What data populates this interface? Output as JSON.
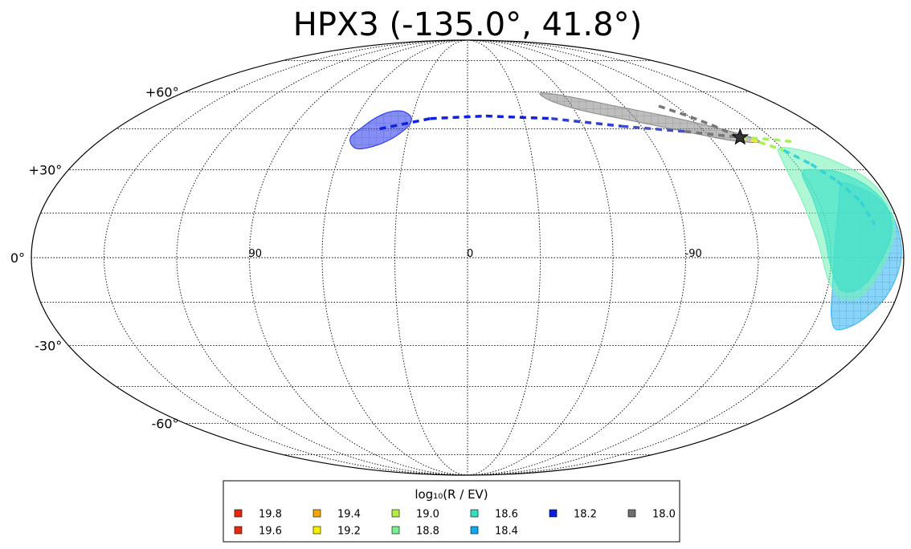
{
  "chart_data": {
    "type": "scatter",
    "projection": "mollweide",
    "title": "HPX3 (-135.0°, 41.8°)",
    "grid": true,
    "lat_ticks": [
      {
        "value": 60,
        "label": "+60°"
      },
      {
        "value": 30,
        "label": "+30°"
      },
      {
        "value": 0,
        "label": "0°"
      },
      {
        "value": -30,
        "label": "-30°"
      },
      {
        "value": -60,
        "label": "-60°"
      }
    ],
    "lon_ticks": [
      {
        "value": 90,
        "label": "90"
      },
      {
        "value": 0,
        "label": "0"
      },
      {
        "value": -90,
        "label": "-90"
      }
    ],
    "source_marker": {
      "lon": -135.0,
      "lat": 41.8,
      "symbol": "star"
    },
    "track": {
      "points": [
        {
          "lon": 45,
          "lat": 45,
          "color": "#1020e0"
        },
        {
          "lon": 20,
          "lat": 49,
          "color": "#1020e0"
        },
        {
          "lon": -10,
          "lat": 50,
          "color": "#1020e0"
        },
        {
          "lon": -45,
          "lat": 49,
          "color": "#1020e0"
        },
        {
          "lon": -80,
          "lat": 46,
          "color": "#3040d0"
        },
        {
          "lon": -110,
          "lat": 44,
          "color": "#4050c8"
        },
        {
          "lon": -135,
          "lat": 41.8,
          "color": "#777777"
        },
        {
          "lon": -142,
          "lat": 40,
          "color": "#f5e63a"
        },
        {
          "lon": -150,
          "lat": 37,
          "color": "#a6f05a"
        },
        {
          "lon": -157,
          "lat": 32,
          "color": "#35d2d8"
        },
        {
          "lon": -163,
          "lat": 26,
          "color": "#35d2d8"
        },
        {
          "lon": -168,
          "lat": 19,
          "color": "#35d2d8"
        },
        {
          "lon": -170,
          "lat": 11,
          "color": "#35d2d8"
        }
      ],
      "gray_branch": [
        {
          "lon": -110,
          "lat": 54
        },
        {
          "lon": -120,
          "lat": 50
        },
        {
          "lon": -128,
          "lat": 46
        },
        {
          "lon": -135,
          "lat": 41.8
        }
      ],
      "green_branch": [
        {
          "lon": -135,
          "lat": 41.8
        },
        {
          "lon": -150,
          "lat": 41
        },
        {
          "lon": -160,
          "lat": 40
        }
      ]
    },
    "regions": [
      {
        "energy": "18.2",
        "color": "#2030f0",
        "opacity": 0.55,
        "hatch": true,
        "outline": [
          [
            31,
            50
          ],
          [
            37,
            52
          ],
          [
            44,
            51.5
          ],
          [
            50,
            49
          ],
          [
            55,
            45
          ],
          [
            58,
            42
          ],
          [
            56,
            39
          ],
          [
            52,
            37.5
          ],
          [
            45,
            38.5
          ],
          [
            38,
            41
          ],
          [
            33,
            44
          ],
          [
            30,
            47
          ]
        ]
      },
      {
        "energy": "18.0",
        "color": "#888888",
        "opacity": 0.55,
        "hatch": true,
        "outline": [
          [
            -46,
            59.5
          ],
          [
            -62,
            58
          ],
          [
            -85,
            54
          ],
          [
            -108,
            50
          ],
          [
            -128,
            45.5
          ],
          [
            -140,
            42
          ],
          [
            -142,
            40
          ],
          [
            -130,
            40.5
          ],
          [
            -110,
            44
          ],
          [
            -88,
            48
          ],
          [
            -65,
            52
          ],
          [
            -50,
            56
          ]
        ]
      },
      {
        "energy": "18.4",
        "color": "#35b8f5",
        "opacity": 0.6,
        "hatch": true,
        "outline": [
          [
            -164,
            25
          ],
          [
            -158,
            18
          ],
          [
            -152,
            5
          ],
          [
            -152,
            -10
          ],
          [
            -156,
            -20
          ],
          [
            -162,
            -24.5
          ],
          [
            -170,
            -21
          ],
          [
            -176,
            -12
          ],
          [
            -179,
            0
          ],
          [
            -179,
            12
          ],
          [
            -176,
            20
          ],
          [
            -170,
            24
          ]
        ]
      },
      {
        "energy": "18.8",
        "color": "#70f2b2",
        "opacity": 0.55,
        "hatch": false,
        "outline": [
          [
            -150,
            38
          ],
          [
            -145,
            33
          ],
          [
            -143,
            20
          ],
          [
            -145,
            5
          ],
          [
            -150,
            -8
          ],
          [
            -158,
            -14
          ],
          [
            -166,
            -12
          ],
          [
            -172,
            -2
          ],
          [
            -178,
            10
          ],
          [
            -179,
            20
          ],
          [
            -176,
            28
          ],
          [
            -165,
            35
          ]
        ]
      },
      {
        "energy": "18.6",
        "color": "#3ee0c8",
        "opacity": 0.65,
        "hatch": false,
        "outline": [
          [
            -150,
            29
          ],
          [
            -148,
            20
          ],
          [
            -148,
            8
          ],
          [
            -150,
            -3
          ],
          [
            -156,
            -11
          ],
          [
            -164,
            -10
          ],
          [
            -170,
            -2
          ],
          [
            -176,
            8
          ],
          [
            -178,
            17
          ],
          [
            -175,
            24
          ],
          [
            -167,
            29
          ],
          [
            -158,
            30
          ]
        ]
      }
    ],
    "legend": {
      "title": "log₁₀(R / EV)",
      "placement": "bottom-center",
      "columns": [
        [
          {
            "label": "19.8",
            "color": "#e02b10"
          },
          {
            "label": "19.6",
            "color": "#e02b10"
          }
        ],
        [
          {
            "label": "19.4",
            "color": "#f5a800"
          },
          {
            "label": "19.2",
            "color": "#f5f000"
          }
        ],
        [
          {
            "label": "19.0",
            "color": "#b0f040"
          },
          {
            "label": "18.8",
            "color": "#78f090"
          }
        ],
        [
          {
            "label": "18.6",
            "color": "#30e0c0"
          },
          {
            "label": "18.4",
            "color": "#10a8f0"
          }
        ],
        [
          {
            "label": "18.2",
            "color": "#0a20e0"
          }
        ],
        [
          {
            "label": "18.0",
            "color": "#707070"
          }
        ]
      ]
    }
  }
}
